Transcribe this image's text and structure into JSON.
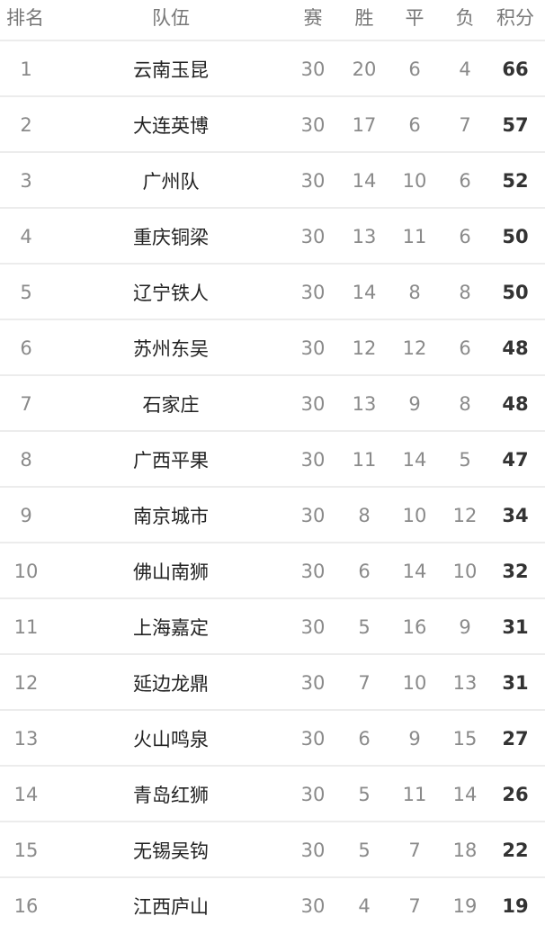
{
  "header": {
    "rank": "排名",
    "team": "队伍",
    "played": "赛",
    "won": "胜",
    "drawn": "平",
    "lost": "负",
    "points": "积分"
  },
  "rows": [
    {
      "rank": "1",
      "team": "云南玉昆",
      "played": "30",
      "won": "20",
      "drawn": "6",
      "lost": "4",
      "points": "66"
    },
    {
      "rank": "2",
      "team": "大连英博",
      "played": "30",
      "won": "17",
      "drawn": "6",
      "lost": "7",
      "points": "57"
    },
    {
      "rank": "3",
      "team": "广州队",
      "played": "30",
      "won": "14",
      "drawn": "10",
      "lost": "6",
      "points": "52"
    },
    {
      "rank": "4",
      "team": "重庆铜梁",
      "played": "30",
      "won": "13",
      "drawn": "11",
      "lost": "6",
      "points": "50"
    },
    {
      "rank": "5",
      "team": "辽宁铁人",
      "played": "30",
      "won": "14",
      "drawn": "8",
      "lost": "8",
      "points": "50"
    },
    {
      "rank": "6",
      "team": "苏州东吴",
      "played": "30",
      "won": "12",
      "drawn": "12",
      "lost": "6",
      "points": "48"
    },
    {
      "rank": "7",
      "team": "石家庄",
      "played": "30",
      "won": "13",
      "drawn": "9",
      "lost": "8",
      "points": "48"
    },
    {
      "rank": "8",
      "team": "广西平果",
      "played": "30",
      "won": "11",
      "drawn": "14",
      "lost": "5",
      "points": "47"
    },
    {
      "rank": "9",
      "team": "南京城市",
      "played": "30",
      "won": "8",
      "drawn": "10",
      "lost": "12",
      "points": "34"
    },
    {
      "rank": "10",
      "team": "佛山南狮",
      "played": "30",
      "won": "6",
      "drawn": "14",
      "lost": "10",
      "points": "32"
    },
    {
      "rank": "11",
      "team": "上海嘉定",
      "played": "30",
      "won": "5",
      "drawn": "16",
      "lost": "9",
      "points": "31"
    },
    {
      "rank": "12",
      "team": "延边龙鼎",
      "played": "30",
      "won": "7",
      "drawn": "10",
      "lost": "13",
      "points": "31"
    },
    {
      "rank": "13",
      "team": "火山鸣泉",
      "played": "30",
      "won": "6",
      "drawn": "9",
      "lost": "15",
      "points": "27"
    },
    {
      "rank": "14",
      "team": "青岛红狮",
      "played": "30",
      "won": "5",
      "drawn": "11",
      "lost": "14",
      "points": "26"
    },
    {
      "rank": "15",
      "team": "无锡吴钩",
      "played": "30",
      "won": "5",
      "drawn": "7",
      "lost": "18",
      "points": "22"
    },
    {
      "rank": "16",
      "team": "江西庐山",
      "played": "30",
      "won": "4",
      "drawn": "7",
      "lost": "19",
      "points": "19"
    }
  ]
}
